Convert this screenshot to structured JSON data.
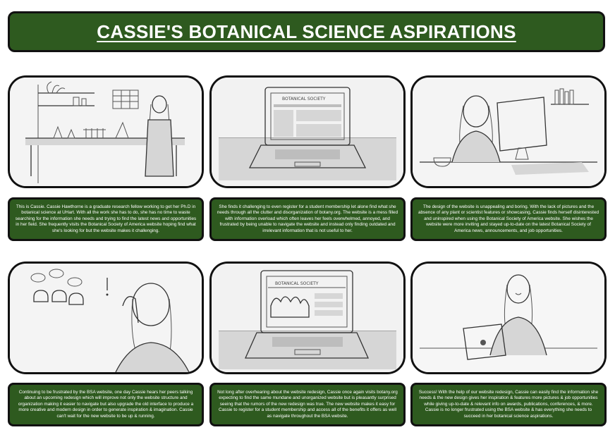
{
  "title": "CASSIE'S BOTANICAL SCIENCE ASPIRATIONS",
  "panels": [
    {
      "scene": "lab-scene",
      "caption": "This is Cassie. Cassie Hawthorne is a graduate research fellow working to get her Ph.D in botanical science at UHart. With all the work she has to do, she has no time to waste searching for the information she needs and trying to find the latest news and opportunities in her field. She frequently visits the Botanical Society of America website hoping find what she's looking for but the website makes it challenging."
    },
    {
      "scene": "laptop-old-site",
      "caption": "She finds it challenging to even register for a student membership let alone find what she needs through all the clutter and disorganization of botany.org. The website is a mess filled with information overload which often leaves her feels overwhelmed, annoyed, and frustrated by being unable to navigate the website and instead only finding outdated and irrelevant information that is not useful to her."
    },
    {
      "scene": "bored-at-computer",
      "caption": "The design of the website is unappealing and boring. With the lack of pictures and the absence of any plant or scientist features or showcasing, Cassie finds herself disinterested and uninspired when using the Botanical Society of America website. She wishes the website were more inviting and stayed up-to-date on the latest Botanical Society of America news, announcements, and job opportunities."
    },
    {
      "scene": "overhearing-peers",
      "caption": "Continuing to be frustrated by the BSA website, one day Cassie hears her peers talking about an upcoming redesign which will improve not only the website structure and organization making it easier to navigate but also upgrade the old interface to produce a more creative and modern design in order to generate inspiration & imagination. Cassie can't wait for the new website to be up & running."
    },
    {
      "scene": "laptop-new-site",
      "caption": "Not long after overhearing about the website redesign, Cassie once again visits botany.org expecting to find the same mundane and unorganized website but is pleasantly surprised seeing that the rumors of the new redesign was true. The new website makes it easy for Cassie to register for a student membership and access all of the benefits it offers as well as navigate throughout the BSA website."
    },
    {
      "scene": "happy-with-laptop",
      "caption": "Success! With the help of our website redesign, Cassie can easily find the information she needs & the new design gives her inspiration & features more pictures & job opportunities while giving up-to-date & relevant info on awards, publications, conferences, & more. Cassie is no longer frustrated using the BSA website & has everything she needs to succeed in her botanical science aspirations."
    }
  ],
  "screen_labels": {
    "old_site": "BOTANICAL SOCIETY",
    "new_site": "BOTANICAL SOCIETY"
  }
}
